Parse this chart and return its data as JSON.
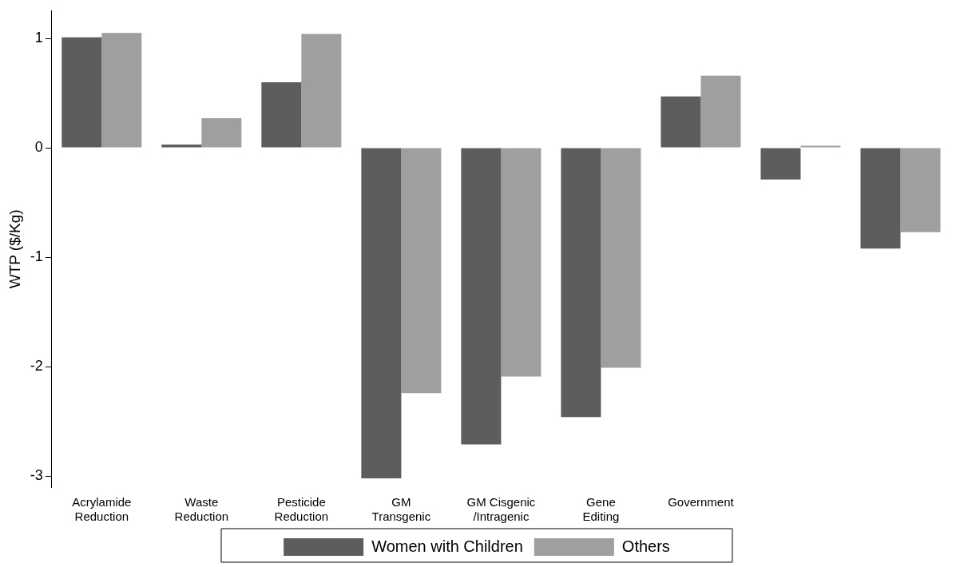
{
  "chart_data": {
    "type": "bar",
    "ylabel": "WTP ($/Kg)",
    "categories": [
      "Acrylamide\nReduction",
      "Waste\nReduction",
      "Pesticide\nReduction",
      "GM\nTransgenic",
      "GM Cisgenic\n/Intragenic",
      "Gene\nEditing",
      "Government",
      null,
      null
    ],
    "series": [
      {
        "name": "Women with Children",
        "color": "#5d5d5d",
        "values": [
          1.01,
          0.03,
          0.6,
          -3.02,
          -2.71,
          -2.46,
          0.47,
          -0.29,
          -0.92
        ]
      },
      {
        "name": "Others",
        "color": "#9f9f9f",
        "values": [
          1.05,
          0.27,
          1.04,
          -2.24,
          -2.09,
          -2.01,
          0.66,
          0.02,
          -0.77
        ]
      }
    ],
    "ylim": [
      -3.1,
      1.25
    ],
    "yticks": [
      -3,
      -2,
      -1,
      0,
      1
    ],
    "grid": false,
    "legend": "bottom"
  }
}
